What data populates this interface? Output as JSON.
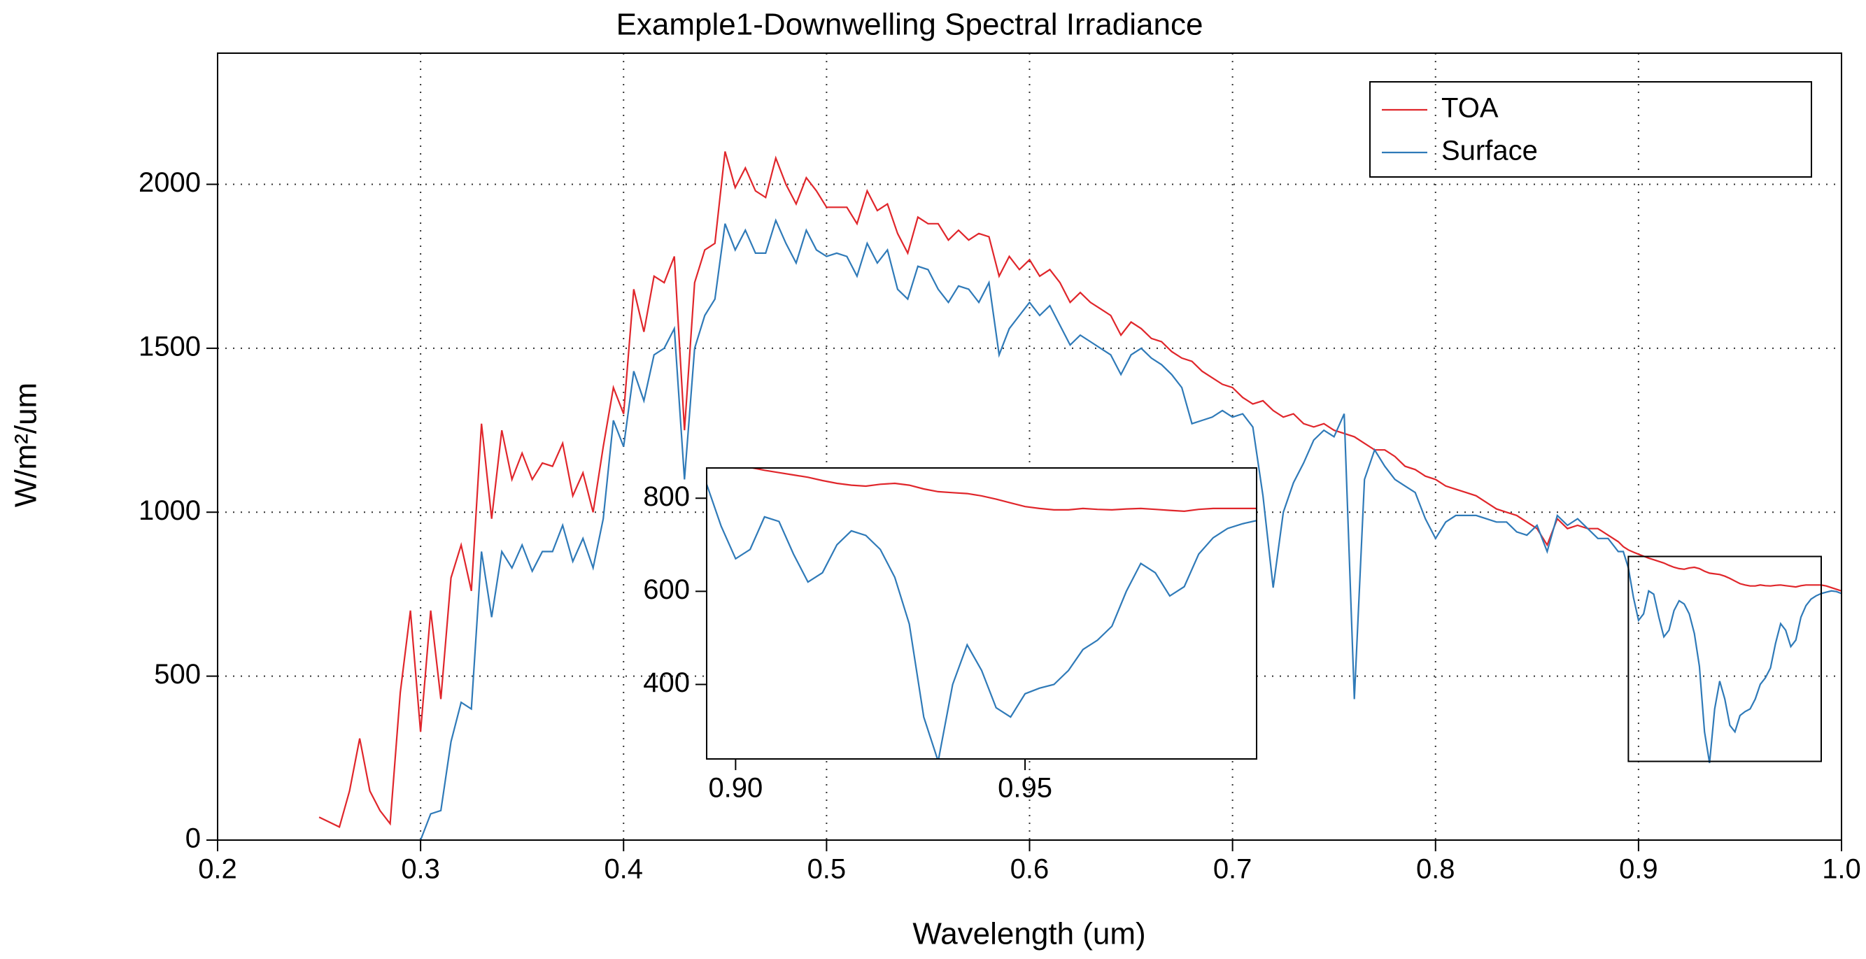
{
  "chart_data": {
    "type": "line",
    "title": "Example1-Downwelling Spectral Irradiance",
    "xlabel": "Wavelength (um)",
    "ylabel": "W/m²/um",
    "x": [
      0.25,
      0.255,
      0.26,
      0.265,
      0.27,
      0.275,
      0.28,
      0.285,
      0.29,
      0.295,
      0.3,
      0.305,
      0.31,
      0.315,
      0.32,
      0.325,
      0.33,
      0.335,
      0.34,
      0.345,
      0.35,
      0.355,
      0.36,
      0.365,
      0.37,
      0.375,
      0.38,
      0.385,
      0.39,
      0.395,
      0.4,
      0.405,
      0.41,
      0.415,
      0.42,
      0.425,
      0.43,
      0.435,
      0.44,
      0.445,
      0.45,
      0.455,
      0.46,
      0.465,
      0.47,
      0.475,
      0.48,
      0.485,
      0.49,
      0.495,
      0.5,
      0.505,
      0.51,
      0.515,
      0.52,
      0.525,
      0.53,
      0.535,
      0.54,
      0.545,
      0.55,
      0.555,
      0.56,
      0.565,
      0.57,
      0.575,
      0.58,
      0.585,
      0.59,
      0.595,
      0.6,
      0.605,
      0.61,
      0.615,
      0.62,
      0.625,
      0.63,
      0.635,
      0.64,
      0.645,
      0.65,
      0.655,
      0.66,
      0.665,
      0.67,
      0.675,
      0.68,
      0.685,
      0.69,
      0.695,
      0.7,
      0.705,
      0.71,
      0.715,
      0.72,
      0.725,
      0.73,
      0.735,
      0.74,
      0.745,
      0.75,
      0.755,
      0.76,
      0.765,
      0.77,
      0.775,
      0.78,
      0.785,
      0.79,
      0.795,
      0.8,
      0.805,
      0.81,
      0.815,
      0.82,
      0.825,
      0.83,
      0.835,
      0.84,
      0.845,
      0.85,
      0.855,
      0.86,
      0.865,
      0.87,
      0.875,
      0.88,
      0.885,
      0.89,
      0.8925,
      0.895,
      0.8975,
      0.9,
      0.9025,
      0.905,
      0.9075,
      0.91,
      0.9125,
      0.915,
      0.9175,
      0.92,
      0.9225,
      0.925,
      0.9275,
      0.93,
      0.9325,
      0.935,
      0.9375,
      0.94,
      0.9425,
      0.945,
      0.9475,
      0.95,
      0.9525,
      0.955,
      0.9575,
      0.96,
      0.9625,
      0.965,
      0.9675,
      0.97,
      0.9725,
      0.975,
      0.9775,
      0.98,
      0.9825,
      0.985,
      0.9875,
      0.99,
      0.9925,
      0.995,
      0.9975,
      1.0
    ],
    "series": [
      {
        "name": "TOA",
        "color": "#e0262b",
        "values": [
          70,
          55,
          40,
          150,
          310,
          150,
          90,
          50,
          450,
          700,
          330,
          700,
          430,
          800,
          900,
          760,
          1270,
          980,
          1250,
          1100,
          1180,
          1100,
          1150,
          1140,
          1210,
          1050,
          1120,
          1000,
          1200,
          1380,
          1300,
          1680,
          1550,
          1720,
          1700,
          1780,
          1250,
          1700,
          1800,
          1820,
          2100,
          1990,
          2050,
          1980,
          1960,
          2080,
          2000,
          1940,
          2020,
          1980,
          1930,
          1930,
          1930,
          1880,
          1980,
          1920,
          1940,
          1850,
          1790,
          1900,
          1880,
          1880,
          1830,
          1860,
          1830,
          1850,
          1840,
          1720,
          1780,
          1740,
          1770,
          1720,
          1740,
          1700,
          1640,
          1670,
          1640,
          1620,
          1600,
          1540,
          1580,
          1560,
          1530,
          1520,
          1490,
          1470,
          1460,
          1430,
          1410,
          1390,
          1380,
          1350,
          1330,
          1340,
          1310,
          1290,
          1300,
          1270,
          1260,
          1270,
          1250,
          1240,
          1230,
          1210,
          1190,
          1190,
          1170,
          1140,
          1130,
          1110,
          1100,
          1080,
          1070,
          1060,
          1050,
          1030,
          1010,
          1000,
          990,
          970,
          950,
          900,
          980,
          950,
          960,
          950,
          950,
          930,
          910,
          895,
          885,
          878,
          872,
          866,
          860,
          855,
          850,
          845,
          838,
          832,
          828,
          826,
          830,
          832,
          828,
          820,
          814,
          812,
          810,
          805,
          798,
          790,
          782,
          778,
          775,
          775,
          778,
          776,
          775,
          777,
          778,
          776,
          774,
          772,
          776,
          778,
          778,
          778,
          778,
          775,
          770,
          765,
          760
        ]
      },
      {
        "name": "Surface",
        "color": "#2f7ab8",
        "values": [
          null,
          null,
          null,
          null,
          null,
          null,
          null,
          null,
          null,
          null,
          0,
          80,
          90,
          300,
          420,
          400,
          880,
          680,
          880,
          830,
          900,
          820,
          880,
          880,
          960,
          850,
          920,
          830,
          980,
          1280,
          1200,
          1430,
          1340,
          1480,
          1500,
          1560,
          1100,
          1500,
          1600,
          1650,
          1880,
          1800,
          1860,
          1790,
          1790,
          1890,
          1820,
          1760,
          1860,
          1800,
          1780,
          1790,
          1780,
          1720,
          1820,
          1760,
          1800,
          1680,
          1650,
          1750,
          1740,
          1680,
          1640,
          1690,
          1680,
          1640,
          1700,
          1480,
          1560,
          1600,
          1640,
          1600,
          1630,
          1570,
          1510,
          1540,
          1520,
          1500,
          1480,
          1420,
          1480,
          1500,
          1470,
          1450,
          1420,
          1380,
          1270,
          1280,
          1290,
          1310,
          1290,
          1300,
          1260,
          1050,
          770,
          1000,
          1090,
          1150,
          1220,
          1250,
          1230,
          1300,
          430,
          1100,
          1190,
          1140,
          1100,
          1080,
          1060,
          980,
          920,
          970,
          990,
          990,
          990,
          980,
          970,
          970,
          940,
          930,
          960,
          880,
          990,
          960,
          980,
          950,
          920,
          920,
          880,
          880,
          830,
          740,
          670,
          690,
          760,
          750,
          680,
          620,
          640,
          700,
          730,
          720,
          690,
          630,
          530,
          330,
          235,
          400,
          485,
          430,
          350,
          330,
          380,
          392,
          400,
          430,
          475,
          495,
          525,
          600,
          660,
          640,
          590,
          610,
          680,
          715,
          735,
          745,
          752,
          756,
          760,
          758,
          752
        ]
      }
    ],
    "xlim": [
      0.2,
      1.0
    ],
    "ylim": [
      0,
      2400
    ],
    "xticks": [
      0.2,
      0.3,
      0.4,
      0.5,
      0.6,
      0.7,
      0.8,
      0.9,
      {
        "value": 1.0,
        "label": "1.0"
      }
    ],
    "yticks": [
      0,
      500,
      1000,
      1500,
      2000
    ],
    "grid": true,
    "legend": "upper right",
    "inset": {
      "xlim": [
        0.895,
        0.99
      ],
      "ylim": [
        240,
        865
      ],
      "xticks": [
        {
          "value": 0.9,
          "label": "0.90"
        },
        0.95
      ],
      "yticks": [
        400,
        600,
        800
      ]
    }
  }
}
